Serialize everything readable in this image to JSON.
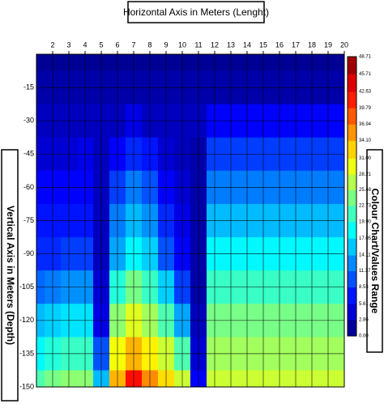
{
  "chart_data": {
    "type": "contour",
    "title": "Horizontal Axis in Meters (Lenght)",
    "y_label": "Vertical Axis in Meters (Depth)",
    "colorbar_label": "Colour Chart/Values Range",
    "x": [
      1,
      2,
      3,
      4,
      5,
      6,
      7,
      8,
      9,
      10,
      11,
      12,
      13,
      14,
      15,
      16,
      17,
      18,
      19,
      20
    ],
    "y": [
      0,
      -15,
      -30,
      -45,
      -60,
      -75,
      -90,
      -105,
      -120,
      -135,
      -150
    ],
    "z": [
      [
        1,
        1,
        1,
        1,
        1,
        1,
        1,
        1,
        1,
        1,
        1,
        1,
        1,
        1,
        1,
        1,
        1,
        1,
        1,
        1
      ],
      [
        2,
        2,
        2,
        2,
        2,
        2,
        2,
        2,
        2,
        2,
        2,
        2,
        2,
        2,
        2,
        2,
        2,
        2,
        2,
        2
      ],
      [
        3,
        3,
        3,
        3,
        3,
        3,
        5,
        3,
        3,
        3,
        3,
        6,
        6,
        6,
        6,
        6,
        6,
        6,
        6,
        6
      ],
      [
        4,
        4,
        4,
        5,
        3,
        6,
        8,
        7,
        4,
        3,
        2,
        9,
        9,
        9,
        9,
        9,
        9,
        9,
        9,
        9
      ],
      [
        6,
        6,
        6,
        6,
        3,
        9,
        12,
        10,
        6,
        4,
        2,
        12,
        12,
        12,
        12,
        12,
        12,
        12,
        12,
        12
      ],
      [
        7,
        7,
        7,
        7,
        3,
        12,
        15,
        13,
        8,
        5,
        2,
        15,
        15,
        15,
        15,
        15,
        15,
        15,
        15,
        15
      ],
      [
        8,
        8,
        9,
        9,
        3,
        14,
        18,
        16,
        10,
        6,
        2,
        18,
        18,
        18,
        18,
        18,
        18,
        18,
        18,
        18
      ],
      [
        11,
        12,
        13,
        13,
        4,
        20,
        24,
        21,
        16,
        9,
        2,
        21,
        21,
        21,
        21,
        21,
        21,
        21,
        21,
        21
      ],
      [
        15,
        16,
        17,
        17,
        5,
        25,
        29,
        26,
        22,
        14,
        3,
        24,
        24,
        24,
        24,
        24,
        24,
        24,
        24,
        24
      ],
      [
        18,
        20,
        21,
        21,
        10,
        30,
        34,
        31,
        28,
        22,
        4,
        26,
        26,
        26,
        26,
        26,
        26,
        26,
        26,
        26
      ],
      [
        22,
        24,
        25,
        25,
        15,
        34,
        42,
        36,
        32,
        28,
        6,
        28,
        28,
        28,
        28,
        28,
        28,
        28,
        28,
        28
      ]
    ],
    "xlim": [
      1,
      20
    ],
    "ylim": [
      -150,
      0
    ],
    "xticks": [
      2,
      3,
      4,
      5,
      6,
      7,
      8,
      9,
      10,
      11,
      12,
      13,
      14,
      15,
      16,
      17,
      18,
      19,
      20
    ],
    "yticks": [
      -15,
      -30,
      -45,
      -60,
      -75,
      -90,
      -105,
      -120,
      -135,
      -150
    ],
    "colorbar_ticks": [
      {
        "value": 0,
        "label": "0.00"
      },
      {
        "value": 2.86,
        "label": "2.86"
      },
      {
        "value": 5.61,
        "label": "5.61"
      },
      {
        "value": 8.53,
        "label": "8.53"
      },
      {
        "value": 11.37,
        "label": "11.37"
      },
      {
        "value": 14.11,
        "label": "14.11"
      },
      {
        "value": 17.05,
        "label": "17.05"
      },
      {
        "value": 19.9,
        "label": "19.90"
      },
      {
        "value": 22.73,
        "label": "22.73"
      },
      {
        "value": 25.48,
        "label": "25.48"
      },
      {
        "value": 28.21,
        "label": "28.21"
      },
      {
        "value": 31,
        "label": "31.00"
      },
      {
        "value": 34.1,
        "label": "34.10"
      },
      {
        "value": 36.94,
        "label": "36.94"
      },
      {
        "value": 39.79,
        "label": "39.79"
      },
      {
        "value": 42.63,
        "label": "42.63"
      },
      {
        "value": 45.71,
        "label": "45.71"
      },
      {
        "value": 48.71,
        "label": "48.71"
      }
    ],
    "grid": true
  }
}
